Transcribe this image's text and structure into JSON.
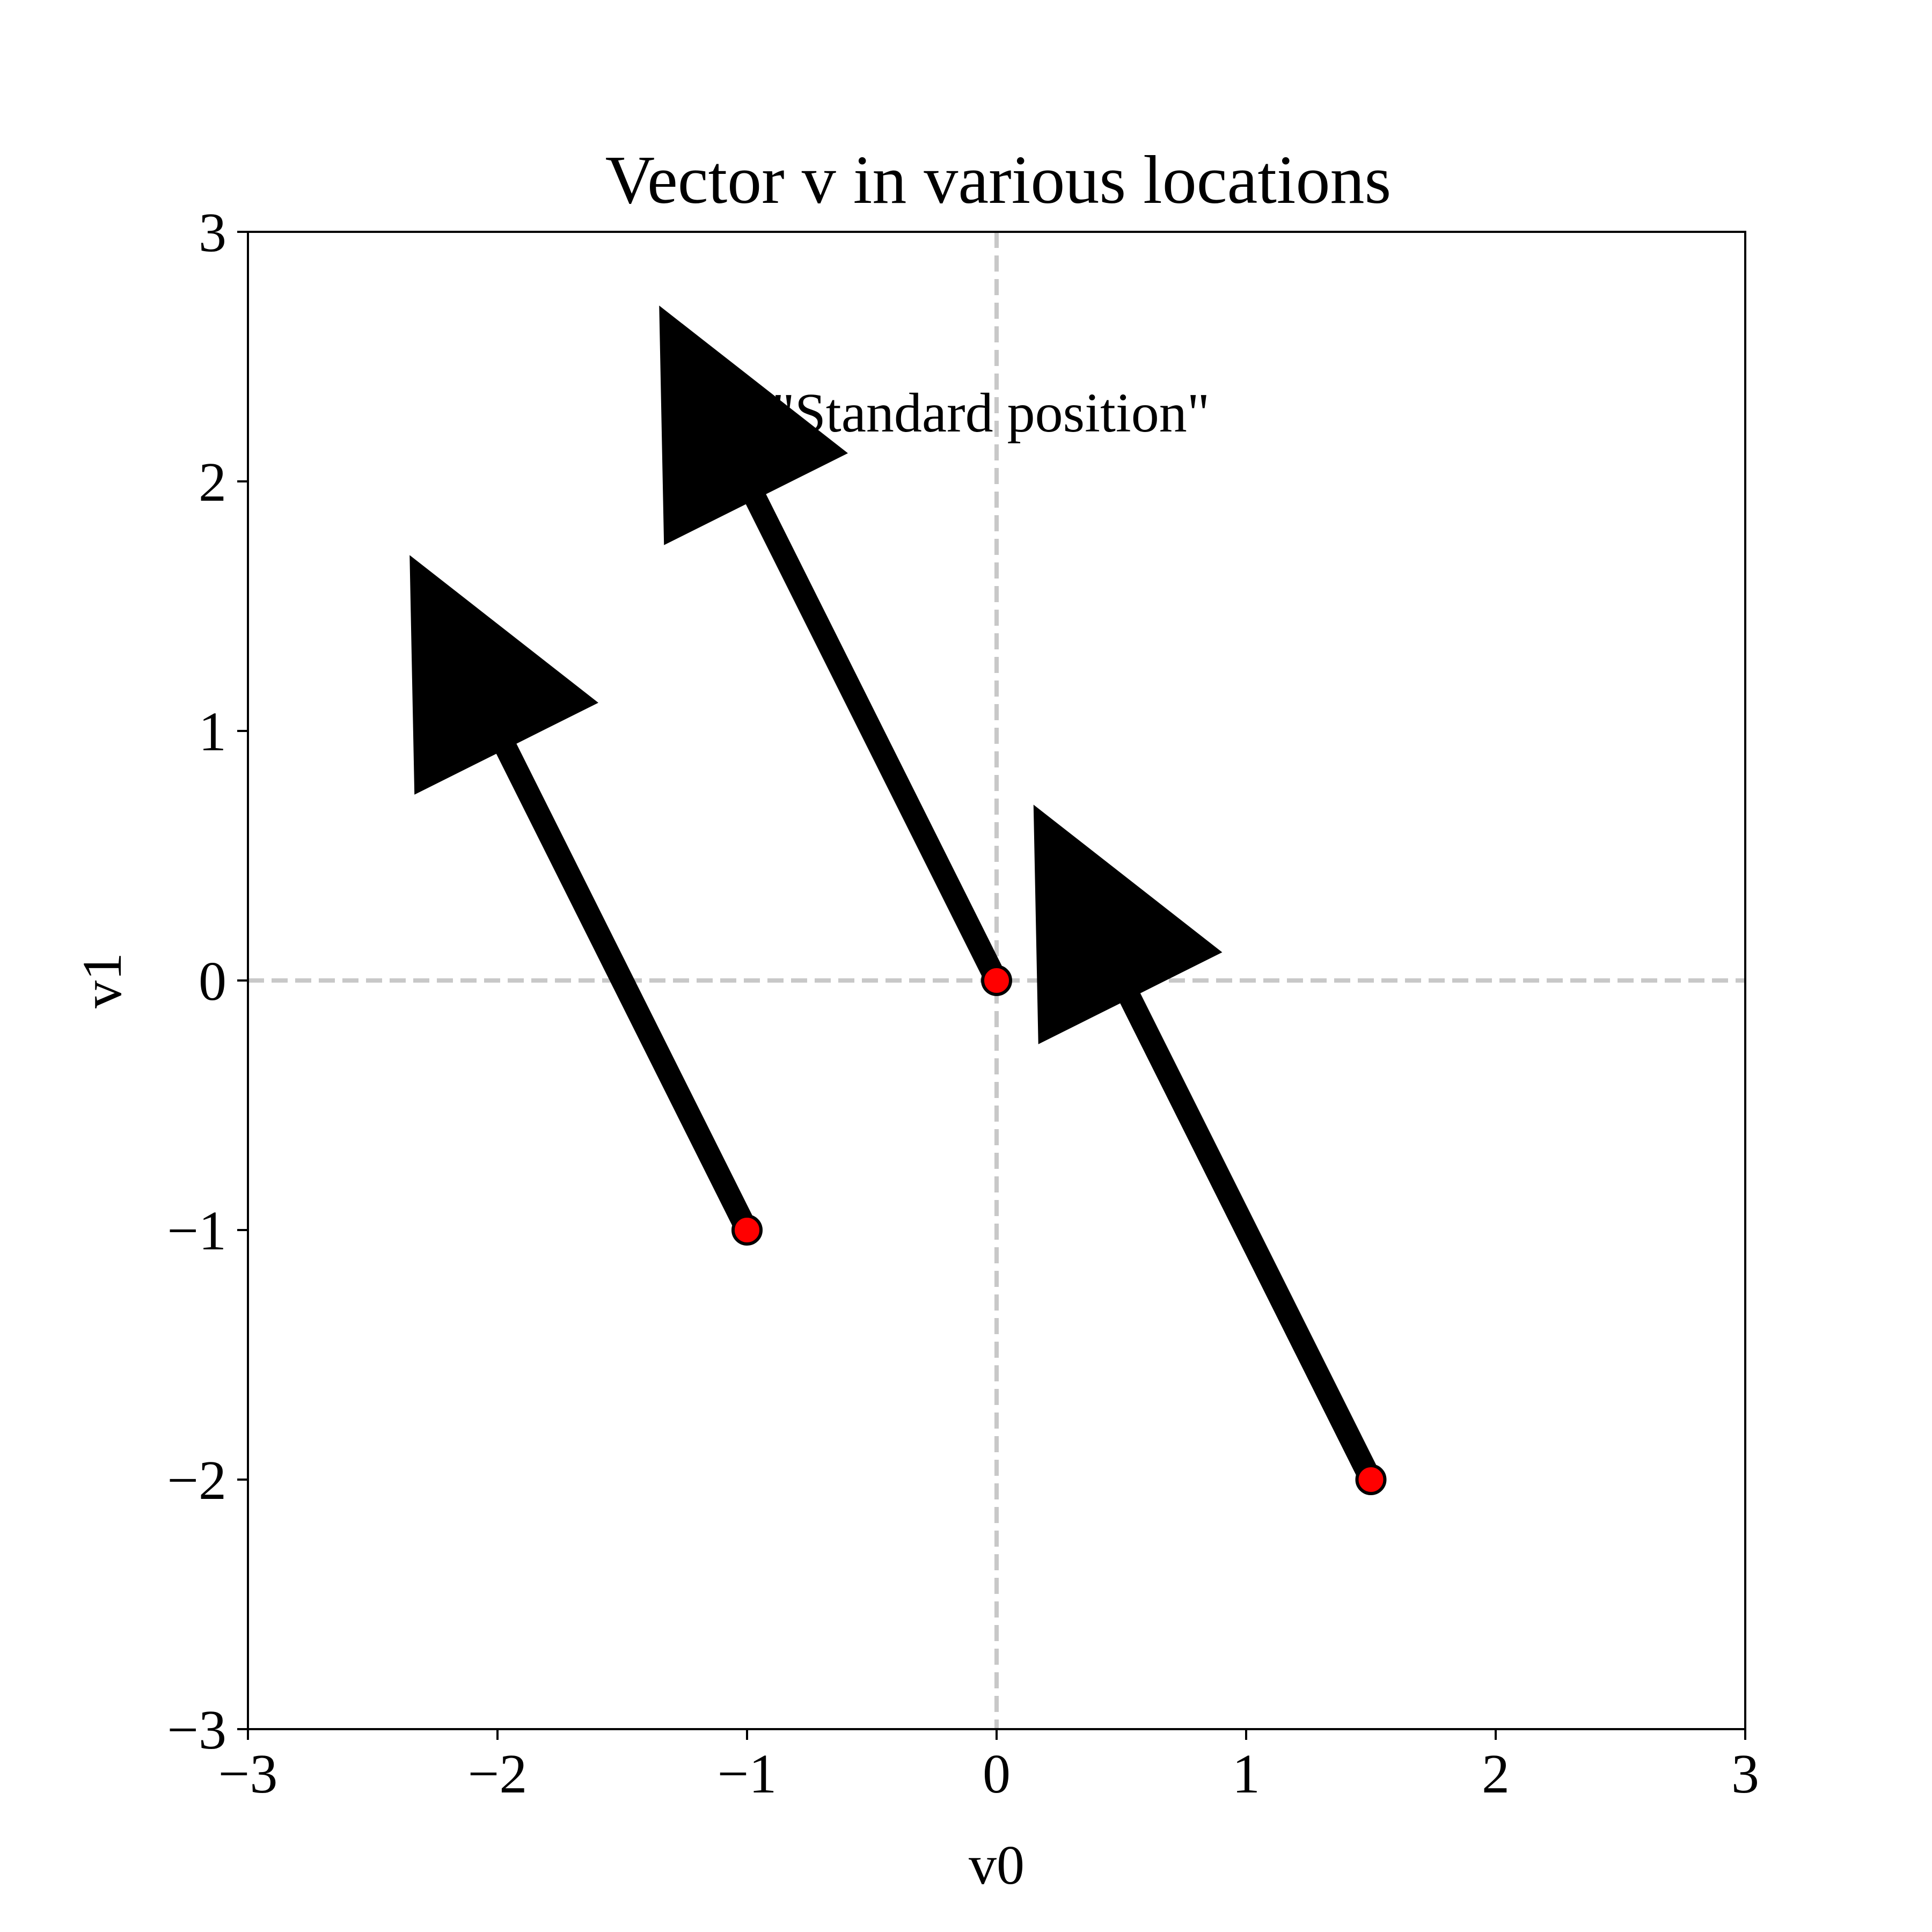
{
  "colors": {
    "arrow": "#000000",
    "point_fill": "#ff0000",
    "point_edge": "#000000",
    "crosshair": "#c8c8c8",
    "axes": "#000000",
    "background": "#ffffff"
  },
  "chart_data": {
    "type": "vector",
    "title": "Vector v in various locations",
    "xlabel": "v0",
    "ylabel": "v1",
    "xlim": [
      -3,
      3
    ],
    "ylim": [
      -3,
      3
    ],
    "xticks": [
      -3,
      -2,
      -1,
      0,
      1,
      2,
      3
    ],
    "yticks": [
      -3,
      -2,
      -1,
      0,
      1,
      2,
      3
    ],
    "xtick_labels": [
      "−3",
      "−2",
      "−1",
      "0",
      "1",
      "2",
      "3"
    ],
    "ytick_labels": [
      "−3",
      "−2",
      "−1",
      "0",
      "1",
      "2",
      "3"
    ],
    "grid": false,
    "reference_lines": {
      "x": 0,
      "y": 0,
      "style": "dashed"
    },
    "vector": {
      "dx": -1.35,
      "dy": 2.7
    },
    "vectors": [
      {
        "x0": -1,
        "y0": -1,
        "x1": -2.35,
        "y1": 1.7
      },
      {
        "x0": 0,
        "y0": 0,
        "x1": -1.35,
        "y1": 2.7
      },
      {
        "x0": 1.5,
        "y0": -2,
        "x1": 0.15,
        "y1": 0.7
      }
    ],
    "start_points": [
      {
        "x": -1,
        "y": -1
      },
      {
        "x": 0,
        "y": 0
      },
      {
        "x": 1.5,
        "y": -2
      }
    ],
    "annotations": [
      {
        "text": "\"Standard position\"",
        "x": -0.9,
        "y": 2.2
      }
    ]
  }
}
